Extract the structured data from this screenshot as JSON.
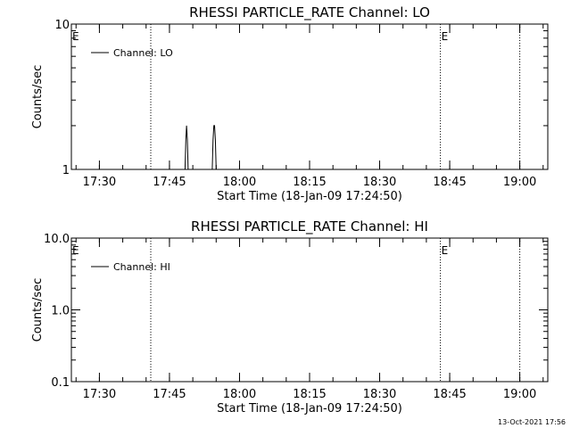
{
  "timestamp": "13-Oct-2021 17:56",
  "chart_data": [
    {
      "type": "line",
      "title": "RHESSI PARTICLE_RATE Channel: LO",
      "xlabel": "Start Time (18-Jan-09 17:24:50)",
      "ylabel": "Counts/sec",
      "xlim": [
        "17:24",
        "19:06"
      ],
      "ylim": [
        1,
        10
      ],
      "yscale": "log",
      "x_ticks": [
        "17:30",
        "17:45",
        "18:00",
        "18:15",
        "18:30",
        "18:45",
        "19:00"
      ],
      "y_ticks": [
        "1",
        "10"
      ],
      "legend": "top-left",
      "series": [
        {
          "name": "Channel: LO",
          "points": [
            [
              "17:48:20",
              1
            ],
            [
              "17:48:30",
              1.6
            ],
            [
              "17:48:40",
              2
            ],
            [
              "17:48:50",
              1.6
            ],
            [
              "17:49:00",
              1
            ],
            [
              "17:54:10",
              1
            ],
            [
              "17:54:20",
              1.6
            ],
            [
              "17:54:30",
              2
            ],
            [
              "17:54:40",
              2
            ],
            [
              "17:54:50",
              1.6
            ],
            [
              "17:55:00",
              1
            ]
          ]
        }
      ],
      "event_lines": [
        {
          "time": "17:41"
        },
        {
          "time": "18:43",
          "label": "E"
        },
        {
          "time": "19:00"
        }
      ],
      "edge_marker": "E"
    },
    {
      "type": "line",
      "title": "RHESSI PARTICLE_RATE Channel: HI",
      "xlabel": "Start Time (18-Jan-09 17:24:50)",
      "ylabel": "Counts/sec",
      "xlim": [
        "17:24",
        "19:06"
      ],
      "ylim": [
        0.1,
        10
      ],
      "yscale": "log",
      "x_ticks": [
        "17:30",
        "17:45",
        "18:00",
        "18:15",
        "18:30",
        "18:45",
        "19:00"
      ],
      "y_ticks": [
        "0.1",
        "1.0",
        "10.0"
      ],
      "legend": "top-left",
      "series": [
        {
          "name": "Channel: HI",
          "points": []
        }
      ],
      "event_lines": [
        {
          "time": "17:41"
        },
        {
          "time": "18:43",
          "label": "E"
        },
        {
          "time": "19:00"
        }
      ],
      "edge_marker": "E"
    }
  ]
}
